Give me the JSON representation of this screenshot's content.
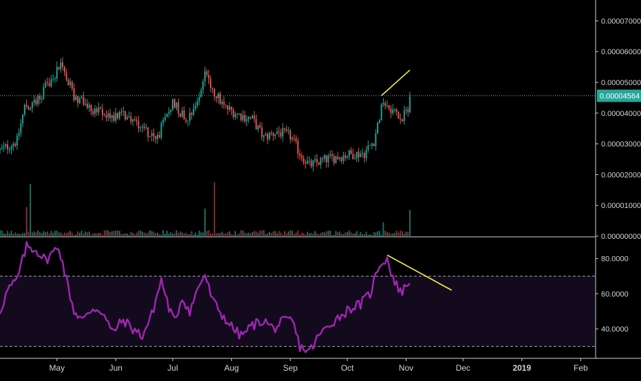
{
  "colors": {
    "background": "#000000",
    "up": "#26a69a",
    "down": "#ef5350",
    "vol_up": "#1f6f62",
    "vol_down": "#8c2f2f",
    "rsi": "#9c27b0",
    "rsi_band": "#140a1e",
    "trendline": "#f5f542",
    "price_line": "#4db6ac",
    "axis_text": "#d1d4dc",
    "axis_line": "#d1d4dc",
    "price_tag_bg": "#26a69a",
    "price_tag_text": "#ffffff"
  },
  "chart_data": [
    {
      "type": "candlestick",
      "title": "",
      "x_labels": [
        "May",
        "Jun",
        "Jul",
        "Aug",
        "Sep",
        "Oct",
        "Nov",
        "Dec",
        "2019",
        "Feb"
      ],
      "x_label_emphasis": "2019",
      "y_ticks": [
        "0.00007000",
        "0.00006000",
        "0.00005000",
        "0.00004000",
        "0.00003000",
        "0.00002000",
        "0.00001000",
        "0.00000000"
      ],
      "ylim": [
        0,
        7.5e-05
      ],
      "last_price": "0.00004564",
      "last_price_value": 4.564e-05,
      "close_trend_points": [
        {
          "date": "Apr 01",
          "close": 2.78e-05
        },
        {
          "date": "Apr 10",
          "close": 3.1e-05
        },
        {
          "date": "Apr 14",
          "close": 4.2e-05
        },
        {
          "date": "Apr 22",
          "close": 4.55e-05
        },
        {
          "date": "Apr 30",
          "close": 5.3e-05
        },
        {
          "date": "May 03",
          "close": 5.6e-05
        },
        {
          "date": "May 10",
          "close": 4.55e-05
        },
        {
          "date": "May 20",
          "close": 4.1e-05
        },
        {
          "date": "May 28",
          "close": 3.9e-05
        },
        {
          "date": "Jun 05",
          "close": 3.95e-05
        },
        {
          "date": "Jun 15",
          "close": 3.6e-05
        },
        {
          "date": "Jun 22",
          "close": 3.1e-05
        },
        {
          "date": "Jun 28",
          "close": 3.9e-05
        },
        {
          "date": "Jul 01",
          "close": 4.4e-05
        },
        {
          "date": "Jul 08",
          "close": 3.8e-05
        },
        {
          "date": "Jul 15",
          "close": 4.5e-05
        },
        {
          "date": "Jul 18",
          "close": 5.4e-05
        },
        {
          "date": "Jul 22",
          "close": 4.8e-05
        },
        {
          "date": "Jul 28",
          "close": 4.2e-05
        },
        {
          "date": "Aug 05",
          "close": 3.95e-05
        },
        {
          "date": "Aug 12",
          "close": 3.8e-05
        },
        {
          "date": "Aug 18",
          "close": 3.2e-05
        },
        {
          "date": "Aug 25",
          "close": 3.4e-05
        },
        {
          "date": "Sep 01",
          "close": 3.25e-05
        },
        {
          "date": "Sep 06",
          "close": 2.7e-05
        },
        {
          "date": "Sep 11",
          "close": 2.3e-05
        },
        {
          "date": "Sep 20",
          "close": 2.5e-05
        },
        {
          "date": "Oct 01",
          "close": 2.65e-05
        },
        {
          "date": "Oct 10",
          "close": 2.7e-05
        },
        {
          "date": "Oct 15",
          "close": 3.1e-05
        },
        {
          "date": "Oct 20",
          "close": 4.4e-05
        },
        {
          "date": "Oct 25",
          "close": 4.1e-05
        },
        {
          "date": "Oct 30",
          "close": 3.8e-05
        },
        {
          "date": "Nov 02",
          "close": 4.2e-05
        },
        {
          "date": "Nov 03",
          "close": 4.56e-05
        }
      ],
      "volume_spikes": [
        {
          "date": "Apr 15",
          "value": 9.5e-06
        },
        {
          "date": "Apr 17",
          "value": 1.7e-05
        },
        {
          "date": "Jul 18",
          "value": 9e-06
        },
        {
          "date": "Jul 23",
          "value": 1.75e-05
        },
        {
          "date": "Oct 20",
          "value": 4.5e-06
        },
        {
          "date": "Nov 03",
          "value": 8.5e-06
        }
      ],
      "annotations": [
        {
          "type": "trendline",
          "from": {
            "date": "Oct 19",
            "value": 4.57e-05
          },
          "to": {
            "date": "Nov 03",
            "value": 5.4e-05
          }
        }
      ]
    },
    {
      "type": "line",
      "title": "",
      "y_ticks": [
        "80.0000",
        "60.0000",
        "40.0000"
      ],
      "ylim": [
        24,
        92
      ],
      "overbought": 70,
      "oversold": 30,
      "series": [
        {
          "x": [
            "Apr 01",
            "Apr 05",
            "Apr 10",
            "Apr 15",
            "Apr 20",
            "Apr 25",
            "May 02",
            "May 06",
            "May 10",
            "May 15",
            "May 20",
            "May 25",
            "May 30",
            "Jun 05",
            "Jun 10",
            "Jun 15",
            "Jun 20",
            "Jun 25",
            "Jun 29",
            "Jul 02",
            "Jul 06",
            "Jul 10",
            "Jul 15",
            "Jul 18",
            "Jul 22",
            "Jul 27",
            "Aug 02",
            "Aug 06",
            "Aug 12",
            "Aug 18",
            "Aug 23",
            "Aug 28",
            "Sep 02",
            "Sep 06",
            "Sep 11",
            "Sep 16",
            "Sep 22",
            "Sep 28",
            "Oct 03",
            "Oct 08",
            "Oct 13",
            "Oct 18",
            "Oct 22",
            "Oct 26",
            "Oct 30",
            "Nov 03"
          ],
          "y": [
            50,
            62,
            68,
            87,
            85,
            79,
            87,
            68,
            50,
            45,
            52,
            50,
            38,
            45,
            40,
            36,
            48,
            68,
            52,
            44,
            58,
            50,
            65,
            71,
            56,
            48,
            40,
            36,
            42,
            45,
            40,
            44,
            45,
            30,
            27,
            36,
            43,
            48,
            52,
            54,
            60,
            77,
            80,
            66,
            61,
            68
          ]
        }
      ],
      "annotations": [
        {
          "type": "trendline",
          "from": {
            "date": "Oct 22",
            "value": 82
          },
          "to": {
            "date": "Nov 25",
            "value": 62
          }
        }
      ]
    }
  ]
}
